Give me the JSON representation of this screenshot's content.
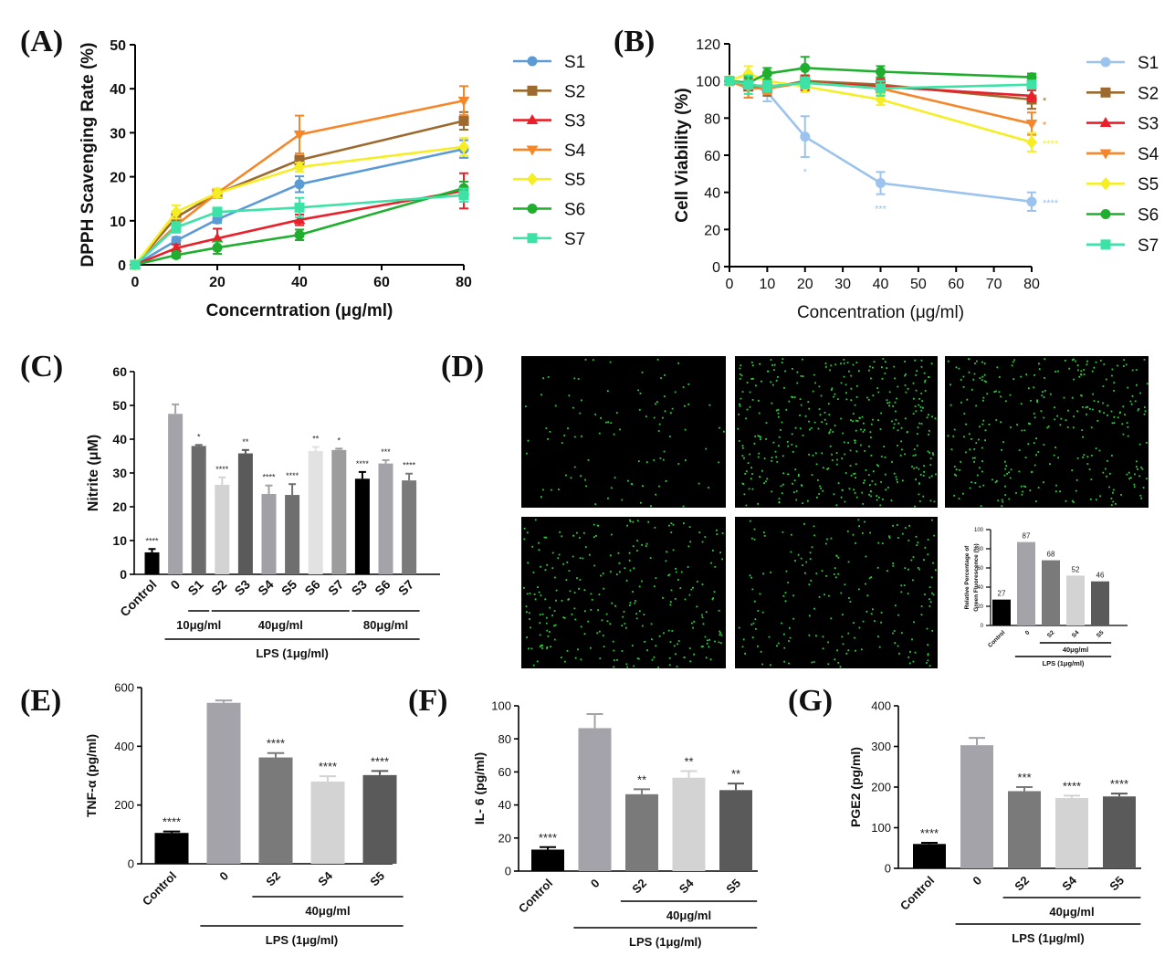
{
  "panels": {
    "A": "(A)",
    "B": "(B)",
    "C": "(C)",
    "D": "(D)",
    "E": "(E)",
    "F": "(F)",
    "G": "(G)"
  },
  "colors": {
    "S1": "#5b9bd5",
    "S1b": "#9cc3ee",
    "S2": "#9c6a2e",
    "S3": "#e8202a",
    "S4": "#f5862a",
    "S5": "#f5ee25",
    "S6": "#1fae2e",
    "S7": "#3de3a6",
    "cell": "#2ecc40"
  },
  "chart_data": [
    {
      "id": "A",
      "type": "line",
      "title": "",
      "xlabel": "Concerntration (μg/ml)",
      "ylabel": "DPPH Scavenging Rate (%)",
      "xlim": [
        0,
        80
      ],
      "ylim": [
        0,
        50
      ],
      "xticks": [
        0,
        20,
        40,
        60,
        80
      ],
      "yticks": [
        0,
        10,
        20,
        30,
        40,
        50
      ],
      "x": [
        0,
        10,
        20,
        40,
        80
      ],
      "series": [
        {
          "name": "S1",
          "marker": "circle",
          "values": [
            0,
            5.5,
            10.3,
            18.3,
            26.3
          ],
          "err": [
            0,
            0.8,
            0.8,
            1.8,
            2.0
          ]
        },
        {
          "name": "S2",
          "marker": "square",
          "values": [
            0,
            10.8,
            16.2,
            23.8,
            32.7
          ],
          "err": [
            0,
            1.2,
            1.0,
            1.0,
            2.0
          ]
        },
        {
          "name": "S3",
          "marker": "triangle-up",
          "values": [
            0,
            3.8,
            6.0,
            10.2,
            16.8
          ],
          "err": [
            0,
            0.8,
            2.2,
            1.2,
            4.0
          ]
        },
        {
          "name": "S4",
          "marker": "triangle-down",
          "values": [
            0,
            9.0,
            16.3,
            29.6,
            37.3
          ],
          "err": [
            0,
            1.5,
            1.0,
            4.3,
            3.3
          ]
        },
        {
          "name": "S5",
          "marker": "diamond",
          "values": [
            0,
            12.0,
            16.3,
            22.2,
            26.8
          ],
          "err": [
            0,
            1.5,
            1.0,
            1.0,
            2.0
          ]
        },
        {
          "name": "S6",
          "marker": "circle",
          "values": [
            0,
            2.2,
            3.9,
            6.8,
            17.4
          ],
          "err": [
            0,
            0.6,
            1.4,
            1.2,
            1.5
          ]
        },
        {
          "name": "S7",
          "marker": "square",
          "values": [
            0,
            8.5,
            12.0,
            13.0,
            15.8
          ],
          "err": [
            0,
            1.2,
            1.0,
            2.2,
            1.5
          ]
        }
      ]
    },
    {
      "id": "B",
      "type": "line",
      "title": "",
      "xlabel": "Concentration (μg/ml)",
      "ylabel": "Cell Viability (%)",
      "xlim": [
        0,
        80
      ],
      "ylim": [
        0,
        120
      ],
      "xticks": [
        0,
        10,
        20,
        30,
        40,
        50,
        60,
        70,
        80
      ],
      "yticks": [
        0,
        20,
        40,
        60,
        80,
        100,
        120
      ],
      "x": [
        0,
        5,
        10,
        20,
        40,
        80
      ],
      "series": [
        {
          "name": "S1",
          "marker": "circle",
          "values": [
            100,
            99,
            94,
            70,
            45,
            35
          ],
          "err": [
            0,
            3,
            5,
            11,
            6,
            5
          ],
          "sig": [
            "",
            "",
            "",
            "*",
            "***",
            "****"
          ]
        },
        {
          "name": "S2",
          "marker": "square",
          "values": [
            100,
            97,
            96,
            100,
            98,
            90
          ],
          "err": [
            0,
            6,
            4,
            3,
            4,
            5
          ],
          "sig": [
            "",
            "",
            "",
            "",
            "",
            "*"
          ]
        },
        {
          "name": "S3",
          "marker": "triangle-up",
          "values": [
            100,
            98,
            97,
            99,
            97,
            92
          ],
          "err": [
            0,
            3,
            3,
            4,
            4,
            3
          ],
          "sig": [
            "",
            "",
            "",
            "",
            "",
            ""
          ]
        },
        {
          "name": "S4",
          "marker": "triangle-down",
          "values": [
            100,
            96,
            96,
            99,
            96,
            77
          ],
          "err": [
            0,
            5,
            3,
            3,
            4,
            6
          ],
          "sig": [
            "",
            "",
            "",
            "",
            "",
            "*"
          ]
        },
        {
          "name": "S5",
          "marker": "diamond",
          "values": [
            100,
            104,
            100,
            97,
            90,
            67
          ],
          "err": [
            0,
            4,
            4,
            3,
            3,
            5
          ],
          "sig": [
            "",
            "",
            "",
            "",
            "",
            "****"
          ]
        },
        {
          "name": "S6",
          "marker": "circle",
          "values": [
            100,
            99,
            104,
            107,
            105,
            102
          ],
          "err": [
            0,
            3,
            3,
            6,
            3,
            2
          ],
          "sig": [
            "",
            "",
            "",
            "",
            "",
            ""
          ]
        },
        {
          "name": "S7",
          "marker": "square",
          "values": [
            100,
            98,
            97,
            99,
            96,
            98
          ],
          "err": [
            0,
            5,
            3,
            3,
            4,
            2
          ],
          "sig": [
            "",
            "",
            "",
            "",
            "",
            ""
          ]
        }
      ]
    },
    {
      "id": "C",
      "type": "bar",
      "title": "",
      "ylabel": "Nitrite (μM)",
      "ylim": [
        0,
        60
      ],
      "yticks": [
        0,
        10,
        20,
        30,
        40,
        50,
        60
      ],
      "categories": [
        "Control",
        "0",
        "S1",
        "S2",
        "S3",
        "S4",
        "S5",
        "S6",
        "S7",
        "S3",
        "S6",
        "S7"
      ],
      "values": [
        6.5,
        47.5,
        38,
        26.5,
        35.8,
        23.8,
        23.5,
        36.5,
        36.8,
        28.3,
        32.8,
        27.8
      ],
      "err": [
        1.0,
        2.8,
        0.3,
        2.2,
        1.0,
        2.5,
        3.2,
        1.2,
        0.4,
        2.0,
        1.0,
        2.0
      ],
      "sig": [
        "****",
        "",
        "*",
        "****",
        "**",
        "****",
        "****",
        "**",
        "*",
        "****",
        "***",
        "****"
      ],
      "bar_colors": [
        "#000000",
        "#a3a3a9",
        "#6b6b6b",
        "#d3d3d3",
        "#5a5a5a",
        "#a0a0a6",
        "#6f6f6f",
        "#e2e2e2",
        "#9c9c9c",
        "#000000",
        "#a3a3a9",
        "#7a7a7a"
      ],
      "groups": [
        {
          "label": "10μg/ml",
          "from": 2,
          "to": 2
        },
        {
          "label": "40μg/ml",
          "from": 3,
          "to": 8
        },
        {
          "label": "80μg/ml",
          "from": 9,
          "to": 11
        }
      ],
      "treatment": "LPS (1μg/ml)"
    },
    {
      "id": "D",
      "type": "bar",
      "title": "",
      "ylabel_lines": [
        "Relative Percentage of",
        "Green Fluorescence (%)"
      ],
      "ylim": [
        0,
        100
      ],
      "yticks": [
        0,
        20,
        40,
        60,
        80,
        100
      ],
      "categories": [
        "Control",
        "0",
        "S2",
        "S4",
        "S5"
      ],
      "values": [
        27,
        87,
        68,
        52,
        46
      ],
      "value_labels": [
        "27",
        "87",
        "68",
        "52",
        "46"
      ],
      "bar_colors": [
        "#000000",
        "#a3a3a9",
        "#7a7a7a",
        "#d3d3d3",
        "#5a5a5a"
      ],
      "group": "40μg/ml",
      "treatment": "LPS (1μg/ml)"
    },
    {
      "id": "E",
      "type": "bar",
      "ylabel": "TNF-α (pg/ml)",
      "ylim": [
        0,
        600
      ],
      "yticks": [
        0,
        200,
        400,
        600
      ],
      "categories": [
        "Control",
        "0",
        "S2",
        "S4",
        "S5"
      ],
      "values": [
        105,
        548,
        362,
        280,
        302
      ],
      "err": [
        5,
        8,
        15,
        18,
        14
      ],
      "sig": [
        "****",
        "",
        "****",
        "****",
        "****"
      ],
      "bar_colors": [
        "#000000",
        "#a3a3a9",
        "#7a7a7a",
        "#d3d3d3",
        "#5a5a5a"
      ],
      "group": "40μg/ml",
      "treatment": "LPS (1μg/ml)"
    },
    {
      "id": "F",
      "type": "bar",
      "ylabel": "IL- 6 (pg/ml)",
      "ylim": [
        0,
        100
      ],
      "yticks": [
        0,
        20,
        40,
        60,
        80,
        100
      ],
      "categories": [
        "Control",
        "0",
        "S2",
        "S4",
        "S5"
      ],
      "values": [
        13,
        86.5,
        46.5,
        56.5,
        49
      ],
      "err": [
        1.5,
        8.5,
        3.0,
        4.0,
        4.0
      ],
      "sig": [
        "****",
        "",
        "**",
        "**",
        "**"
      ],
      "bar_colors": [
        "#000000",
        "#a3a3a9",
        "#7a7a7a",
        "#d3d3d3",
        "#5a5a5a"
      ],
      "group": "40μg/ml",
      "treatment": "LPS (1μg/ml)"
    },
    {
      "id": "G",
      "type": "bar",
      "ylabel": "PGE2 (pg/ml)",
      "ylim": [
        0,
        400
      ],
      "yticks": [
        0,
        100,
        200,
        300,
        400
      ],
      "categories": [
        "Control",
        "0",
        "S2",
        "S4",
        "S5"
      ],
      "values": [
        60,
        303,
        190,
        173,
        177
      ],
      "err": [
        3,
        18,
        10,
        6,
        7
      ],
      "sig": [
        "****",
        "",
        "***",
        "****",
        "****"
      ],
      "bar_colors": [
        "#000000",
        "#a3a3a9",
        "#7a7a7a",
        "#d3d3d3",
        "#5a5a5a"
      ],
      "group": "40μg/ml",
      "treatment": "LPS (1μg/ml)"
    }
  ],
  "micrographs": {
    "dot_density": [
      0.11,
      0.45,
      0.34,
      0.3,
      0.22
    ]
  }
}
